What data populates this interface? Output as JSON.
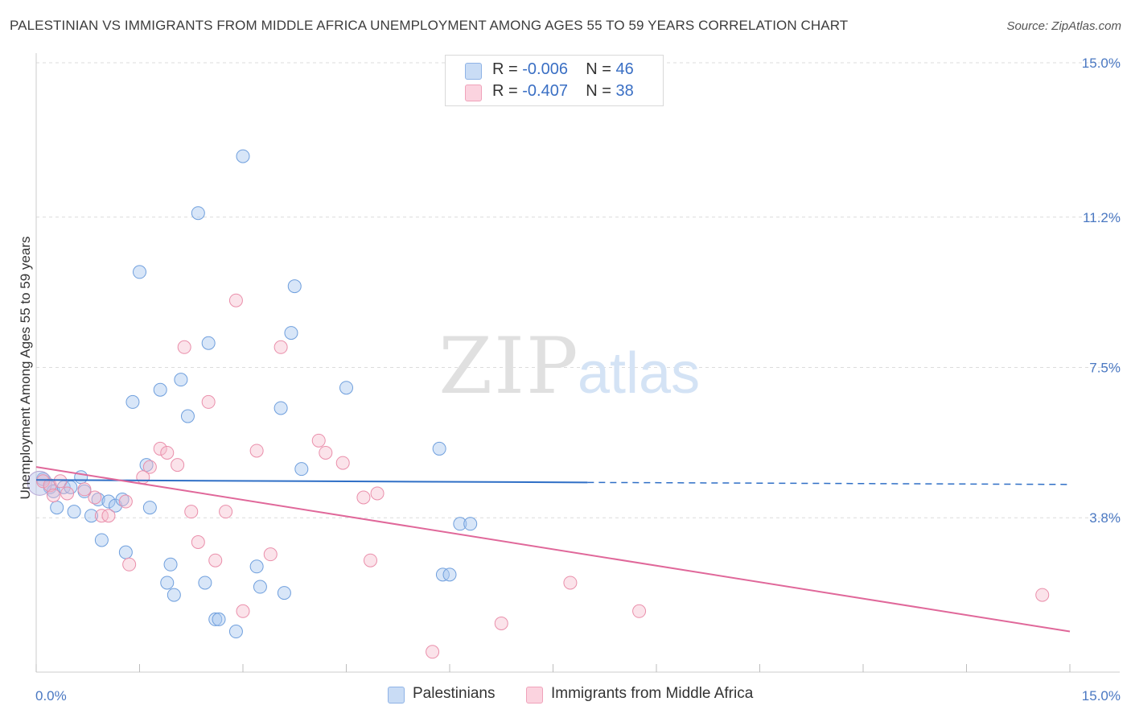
{
  "title": "PALESTINIAN VS IMMIGRANTS FROM MIDDLE AFRICA UNEMPLOYMENT AMONG AGES 55 TO 59 YEARS CORRELATION CHART",
  "source": "Source: ZipAtlas.com",
  "watermark": {
    "zip": "ZIP",
    "atlas": "atlas"
  },
  "stats": [
    {
      "r_label": "R =",
      "r_value": "-0.006",
      "n_label": "N =",
      "n_value": "46",
      "color": "#a9c8f0"
    },
    {
      "r_label": "R =",
      "r_value": "-0.407",
      "n_label": "N =",
      "n_value": "38",
      "color": "#f6b8ca"
    }
  ],
  "legend": [
    {
      "label": "Palestinians",
      "color": "#a9c8f0"
    },
    {
      "label": "Immigrants from Middle Africa",
      "color": "#f6b8ca"
    }
  ],
  "chart_data": {
    "type": "scatter",
    "title": "PALESTINIAN VS IMMIGRANTS FROM MIDDLE AFRICA UNEMPLOYMENT AMONG AGES 55 TO 59 YEARS CORRELATION CHART",
    "xlabel": "",
    "ylabel": "Unemployment Among Ages 55 to 59 years",
    "xlim": [
      0,
      15
    ],
    "ylim": [
      0,
      15
    ],
    "x_tick_labels": [
      "0.0%",
      "15.0%"
    ],
    "y_ticks": [
      3.8,
      7.5,
      11.2,
      15.0
    ],
    "y_tick_labels": [
      "3.8%",
      "7.5%",
      "11.2%",
      "15.0%"
    ],
    "grid": true,
    "legend_position": "bottom",
    "series": [
      {
        "name": "Palestinians",
        "color": "#a9c8f0",
        "line_color": "#2f6fc6",
        "trend": {
          "x": [
            0,
            8.0
          ],
          "y": [
            4.73,
            4.67
          ],
          "dashed_to": [
            15.0,
            4.62
          ]
        },
        "points": [
          [
            0.1,
            4.75
          ],
          [
            0.2,
            4.55
          ],
          [
            0.25,
            4.45
          ],
          [
            0.3,
            4.05
          ],
          [
            0.4,
            4.55
          ],
          [
            0.5,
            4.55
          ],
          [
            0.55,
            3.95
          ],
          [
            0.65,
            4.8
          ],
          [
            0.7,
            4.45
          ],
          [
            0.8,
            3.85
          ],
          [
            0.9,
            4.25
          ],
          [
            0.95,
            3.25
          ],
          [
            1.05,
            4.2
          ],
          [
            1.15,
            4.1
          ],
          [
            1.25,
            4.25
          ],
          [
            1.3,
            2.95
          ],
          [
            1.4,
            6.65
          ],
          [
            1.5,
            9.85
          ],
          [
            1.6,
            5.1
          ],
          [
            1.65,
            4.05
          ],
          [
            1.8,
            6.95
          ],
          [
            1.9,
            2.2
          ],
          [
            1.95,
            2.65
          ],
          [
            2.0,
            1.9
          ],
          [
            2.1,
            7.2
          ],
          [
            2.2,
            6.3
          ],
          [
            2.35,
            11.3
          ],
          [
            2.45,
            2.2
          ],
          [
            2.5,
            8.1
          ],
          [
            2.6,
            1.3
          ],
          [
            2.65,
            1.3
          ],
          [
            2.9,
            1.0
          ],
          [
            3.0,
            12.7
          ],
          [
            3.2,
            2.6
          ],
          [
            3.25,
            2.1
          ],
          [
            3.55,
            6.5
          ],
          [
            3.6,
            1.95
          ],
          [
            3.7,
            8.35
          ],
          [
            3.75,
            9.5
          ],
          [
            3.85,
            5.0
          ],
          [
            4.5,
            7.0
          ],
          [
            5.85,
            5.5
          ],
          [
            5.9,
            2.4
          ],
          [
            6.0,
            2.4
          ],
          [
            6.15,
            3.65
          ],
          [
            6.3,
            3.65
          ]
        ]
      },
      {
        "name": "Immigrants from Middle Africa",
        "color": "#f6b8ca",
        "line_color": "#e0689a",
        "trend": {
          "x": [
            0,
            15.0
          ],
          "y": [
            5.05,
            1.0
          ]
        },
        "points": [
          [
            0.1,
            4.7
          ],
          [
            0.2,
            4.6
          ],
          [
            0.25,
            4.35
          ],
          [
            0.35,
            4.7
          ],
          [
            0.45,
            4.4
          ],
          [
            0.7,
            4.5
          ],
          [
            0.85,
            4.3
          ],
          [
            0.95,
            3.85
          ],
          [
            1.05,
            3.85
          ],
          [
            1.3,
            4.2
          ],
          [
            1.35,
            2.65
          ],
          [
            1.55,
            4.8
          ],
          [
            1.65,
            5.05
          ],
          [
            1.8,
            5.5
          ],
          [
            1.9,
            5.4
          ],
          [
            2.05,
            5.1
          ],
          [
            2.15,
            8.0
          ],
          [
            2.25,
            3.95
          ],
          [
            2.35,
            3.2
          ],
          [
            2.5,
            6.65
          ],
          [
            2.6,
            2.75
          ],
          [
            2.75,
            3.95
          ],
          [
            2.9,
            9.15
          ],
          [
            3.0,
            1.5
          ],
          [
            3.2,
            5.45
          ],
          [
            3.4,
            2.9
          ],
          [
            3.55,
            8.0
          ],
          [
            4.1,
            5.7
          ],
          [
            4.2,
            5.4
          ],
          [
            4.45,
            5.15
          ],
          [
            4.75,
            4.3
          ],
          [
            4.85,
            2.75
          ],
          [
            4.95,
            4.4
          ],
          [
            5.75,
            0.5
          ],
          [
            6.75,
            1.2
          ],
          [
            7.75,
            2.2
          ],
          [
            8.75,
            1.5
          ],
          [
            14.6,
            1.9
          ]
        ]
      }
    ]
  }
}
